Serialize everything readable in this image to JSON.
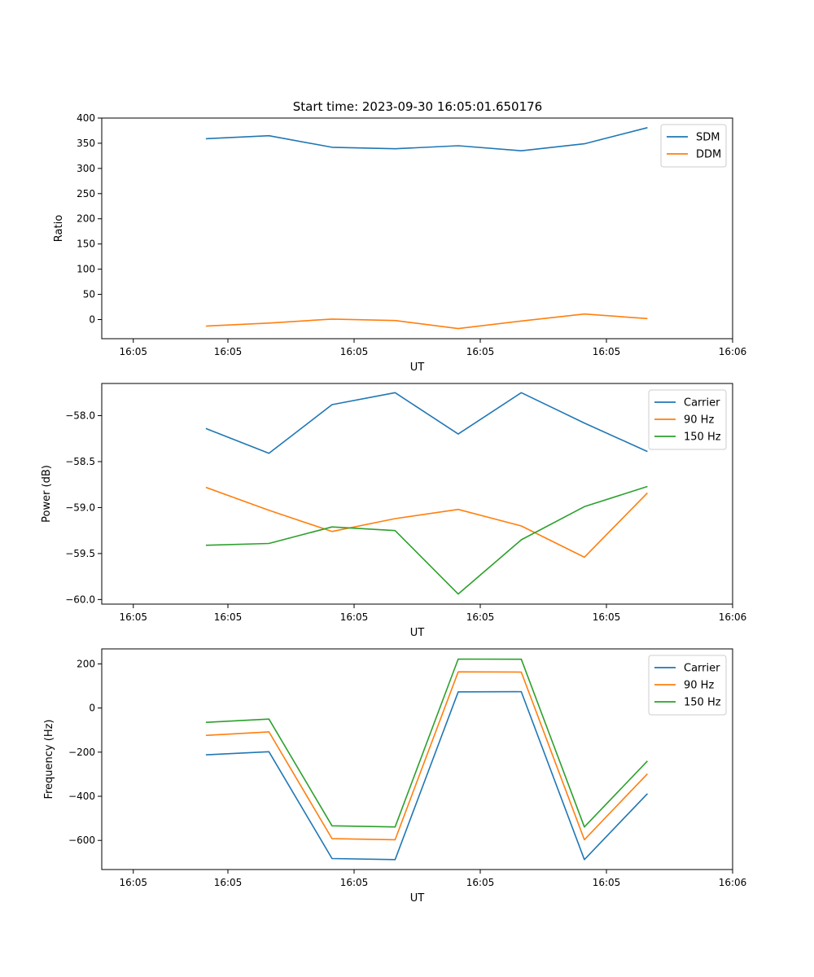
{
  "figure_title": "Start time: 2023-09-30 16:05:01.650176",
  "colors": {
    "blue": "#1f77b4",
    "orange": "#ff7f0e",
    "green": "#2ca02c"
  },
  "chart_data": [
    {
      "type": "line",
      "title": "Start time: 2023-09-30 16:05:01.650176",
      "xlabel": "UT",
      "ylabel": "Ratio",
      "x_seconds": [
        1.65,
        2.65,
        3.65,
        4.65,
        5.65,
        6.65,
        7.65,
        8.65
      ],
      "xlim": [
        0,
        10
      ],
      "xticks": [
        0.5,
        2.0,
        4.0,
        6.0,
        8.0,
        10.0
      ],
      "xtick_labels": [
        "16:05",
        "16:05",
        "16:05",
        "16:05",
        "16:05",
        "16:06"
      ],
      "ylim": [
        -38,
        400
      ],
      "yticks": [
        0,
        50,
        100,
        150,
        200,
        250,
        300,
        350,
        400
      ],
      "ytick_labels": [
        "0",
        "50",
        "100",
        "150",
        "200",
        "250",
        "300",
        "350",
        "400"
      ],
      "legend": "top-right",
      "series": [
        {
          "name": "SDM",
          "color": "#1f77b4",
          "values": [
            359,
            365,
            342,
            339,
            345,
            335,
            349,
            381
          ]
        },
        {
          "name": "DDM",
          "color": "#ff7f0e",
          "values": [
            -13,
            -7,
            1,
            -2,
            -18,
            -3,
            11,
            2
          ]
        }
      ]
    },
    {
      "type": "line",
      "title": "",
      "xlabel": "UT",
      "ylabel": "Power (dB)",
      "x_seconds": [
        1.65,
        2.65,
        3.65,
        4.65,
        5.65,
        6.65,
        7.65,
        8.65
      ],
      "xlim": [
        0,
        10
      ],
      "xticks": [
        0.5,
        2.0,
        4.0,
        6.0,
        8.0,
        10.0
      ],
      "xtick_labels": [
        "16:05",
        "16:05",
        "16:05",
        "16:05",
        "16:05",
        "16:06"
      ],
      "ylim": [
        -60.05,
        -57.65
      ],
      "yticks": [
        -60.0,
        -59.5,
        -59.0,
        -58.5,
        -58.0
      ],
      "ytick_labels": [
        "−60.0",
        "−59.5",
        "−59.0",
        "−58.5",
        "−58.0"
      ],
      "legend": "top-right",
      "series": [
        {
          "name": "Carrier",
          "color": "#1f77b4",
          "values": [
            -58.14,
            -58.41,
            -57.88,
            -57.75,
            -58.2,
            -57.75,
            -58.08,
            -58.39
          ]
        },
        {
          "name": "90 Hz",
          "color": "#ff7f0e",
          "values": [
            -58.78,
            -59.03,
            -59.26,
            -59.12,
            -59.02,
            -59.2,
            -59.54,
            -58.84
          ]
        },
        {
          "name": "150 Hz",
          "color": "#2ca02c",
          "values": [
            -59.41,
            -59.39,
            -59.21,
            -59.25,
            -59.94,
            -59.35,
            -58.99,
            -58.77
          ]
        }
      ]
    },
    {
      "type": "line",
      "title": "",
      "xlabel": "UT",
      "ylabel": "Frequency (Hz)",
      "x_seconds": [
        1.65,
        2.65,
        3.65,
        4.65,
        5.65,
        6.65,
        7.65,
        8.65
      ],
      "xlim": [
        0,
        10
      ],
      "xticks": [
        0.5,
        2.0,
        4.0,
        6.0,
        8.0,
        10.0
      ],
      "xtick_labels": [
        "16:05",
        "16:05",
        "16:05",
        "16:05",
        "16:05",
        "16:06"
      ],
      "ylim": [
        -732,
        268
      ],
      "yticks": [
        -600,
        -400,
        -200,
        0,
        200
      ],
      "ytick_labels": [
        "−600",
        "−400",
        "−200",
        "0",
        "200"
      ],
      "legend": "top-right",
      "series": [
        {
          "name": "Carrier",
          "color": "#1f77b4",
          "values": [
            -212,
            -198,
            -682,
            -687,
            73,
            74,
            -687,
            -388
          ]
        },
        {
          "name": "90 Hz",
          "color": "#ff7f0e",
          "values": [
            -124,
            -108,
            -592,
            -597,
            164,
            163,
            -597,
            -298
          ]
        },
        {
          "name": "150 Hz",
          "color": "#2ca02c",
          "values": [
            -65,
            -50,
            -534,
            -539,
            222,
            221,
            -539,
            -240
          ]
        }
      ]
    }
  ]
}
